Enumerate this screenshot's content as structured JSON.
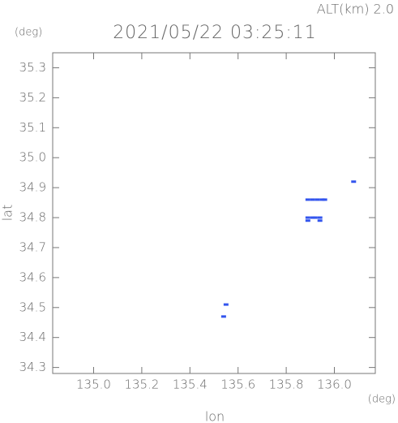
{
  "chart_data": {
    "type": "scatter",
    "title": "2021/05/22 03:25:11",
    "annotation": "ALT(km) 2.0",
    "y_unit": "(deg)",
    "x_unit": "(deg)",
    "x_label": "lon",
    "y_label": "lat",
    "color": "#3355ee",
    "x": [
      136.08,
      135.89,
      135.91,
      135.93,
      135.95,
      135.96,
      135.89,
      135.91,
      135.92,
      135.94,
      135.89,
      135.94,
      135.54,
      135.55
    ],
    "y": [
      34.92,
      34.86,
      34.86,
      34.86,
      34.86,
      34.86,
      34.8,
      34.8,
      34.8,
      34.8,
      34.79,
      34.79,
      34.47,
      34.51
    ],
    "xlim": [
      134.83,
      136.17
    ],
    "ylim": [
      34.28,
      35.35
    ],
    "xticks": [
      {
        "value": 135.0,
        "label": "135.0"
      },
      135.2,
      135.4,
      135.6,
      135.8,
      {
        "value": 136.0,
        "label": "136.0"
      }
    ],
    "yticks": [
      34.3,
      34.4,
      34.5,
      34.6,
      34.7,
      34.8,
      34.9,
      {
        "value": 35.0,
        "label": "35.0"
      },
      35.1,
      35.2,
      35.3
    ]
  }
}
